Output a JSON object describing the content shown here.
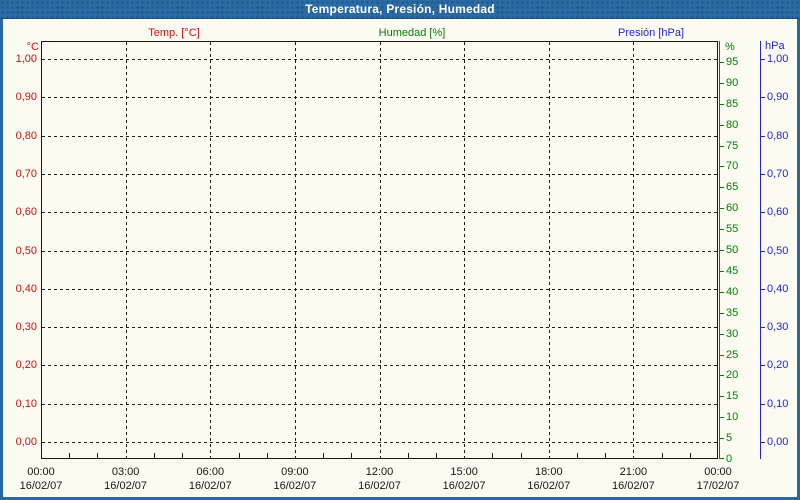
{
  "window": {
    "title": "Temperatura, Presión, Humedad"
  },
  "legend": {
    "items": [
      {
        "id": "temperature",
        "label": "Temp. [°C]",
        "color": "#cc1111"
      },
      {
        "id": "humidity",
        "label": "Humedad [%]",
        "color": "#008000"
      },
      {
        "id": "pressure",
        "label": "Presión [hPa]",
        "color": "#2424cc"
      }
    ]
  },
  "chart_data": {
    "type": "line",
    "title": "Temperatura, Presión, Humedad",
    "grid": true,
    "plot_empty": true,
    "x_axis": {
      "start": "16/02/07 00:00",
      "end": "17/02/07 00:00",
      "range_hours": 24,
      "major_tick_interval_hours": 3,
      "minor_tick_interval_hours": 1,
      "ticks": [
        {
          "time": "00:00",
          "date": "16/02/07"
        },
        {
          "time": "03:00",
          "date": "16/02/07"
        },
        {
          "time": "06:00",
          "date": "16/02/07"
        },
        {
          "time": "09:00",
          "date": "16/02/07"
        },
        {
          "time": "12:00",
          "date": "16/02/07"
        },
        {
          "time": "15:00",
          "date": "16/02/07"
        },
        {
          "time": "18:00",
          "date": "16/02/07"
        },
        {
          "time": "21:00",
          "date": "16/02/07"
        },
        {
          "time": "00:00",
          "date": "17/02/07"
        }
      ]
    },
    "y_axes": {
      "temperature": {
        "unit": "°C",
        "side": "left",
        "color": "#cc1111",
        "min": 0,
        "max": 1,
        "step": 0.1,
        "tick_labels": [
          "1,00",
          "0,90",
          "0,80",
          "0,70",
          "0,60",
          "0,50",
          "0,40",
          "0,30",
          "0,20",
          "0,10",
          "0,00"
        ]
      },
      "humidity": {
        "unit": "%",
        "side": "right-inner",
        "color": "#008000",
        "min": 0,
        "max": 100,
        "step": 5,
        "tick_labels": [
          "95",
          "90",
          "85",
          "80",
          "75",
          "70",
          "65",
          "60",
          "55",
          "50",
          "45",
          "40",
          "35",
          "30",
          "25",
          "20",
          "15",
          "10",
          "5",
          "0"
        ]
      },
      "pressure": {
        "unit": "hPa",
        "side": "right-outer",
        "color": "#2424cc",
        "min": 0,
        "max": 1,
        "step": 0.1,
        "tick_labels": [
          "1,00",
          "0,90",
          "0,80",
          "0,70",
          "0,60",
          "0,50",
          "0,40",
          "0,30",
          "0,20",
          "0,10",
          "0,00"
        ]
      }
    },
    "series": [
      {
        "name": "Temp. [°C]",
        "color": "#cc1111",
        "points": []
      },
      {
        "name": "Humedad [%]",
        "color": "#008000",
        "points": []
      },
      {
        "name": "Presión [hPa]",
        "color": "#2424cc",
        "points": []
      }
    ]
  }
}
